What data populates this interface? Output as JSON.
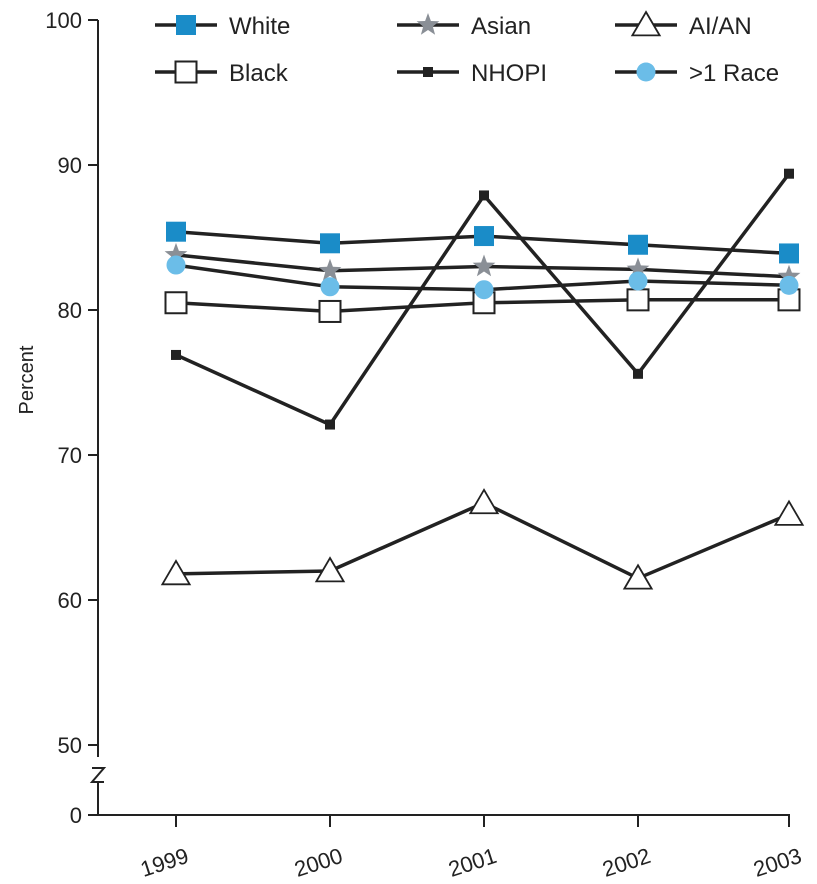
{
  "chart_data": {
    "type": "line",
    "ylabel": "Percent",
    "xlabel": "",
    "categories": [
      "1999",
      "2000",
      "2001",
      "2002",
      "2003"
    ],
    "y_ticks": [
      "100",
      "90",
      "80",
      "70",
      "60",
      "50",
      "0"
    ],
    "y_tick_values": [
      100,
      90,
      80,
      70,
      60,
      50,
      45
    ],
    "ylim": [
      45,
      100
    ],
    "axis_break": true,
    "grid": false,
    "legend_position": "top",
    "series": [
      {
        "name": "White",
        "marker": "square-filled",
        "color": "#1a8cc8",
        "values": [
          85.4,
          84.6,
          85.1,
          84.5,
          83.9
        ]
      },
      {
        "name": "Asian",
        "marker": "star",
        "color": "#8a8f96",
        "values": [
          83.8,
          82.7,
          83.0,
          82.8,
          82.3
        ]
      },
      {
        "name": "AI/AN",
        "marker": "triangle-open",
        "color": "#222222",
        "values": [
          61.8,
          62.0,
          66.7,
          61.5,
          65.9
        ]
      },
      {
        "name": "Black",
        "marker": "square-open",
        "color": "#222222",
        "values": [
          80.5,
          79.9,
          80.5,
          80.7,
          80.7
        ]
      },
      {
        "name": "NHOPI",
        "marker": "square-small",
        "color": "#222222",
        "values": [
          76.9,
          72.1,
          87.9,
          75.6,
          89.4
        ]
      },
      {
        "name": ">1 Race",
        "marker": "circle",
        "color": "#6bbde8",
        "values": [
          83.1,
          81.6,
          81.4,
          82.0,
          81.7
        ]
      }
    ]
  }
}
